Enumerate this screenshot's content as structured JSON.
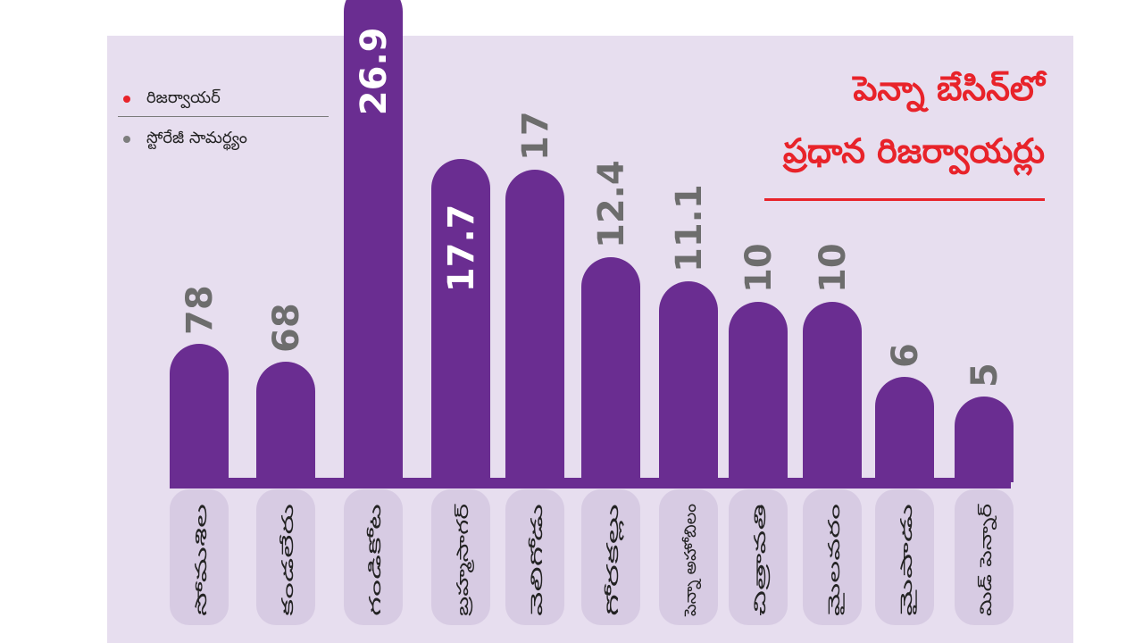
{
  "title": {
    "line1": "పెన్నా బేసిన్‌లో",
    "line2": "ప్రధాన రిజర్వాయర్లు"
  },
  "legend": {
    "items": [
      {
        "label": "రిజర్వాయర్",
        "color": "#e8232a"
      },
      {
        "label": "స్టోరేజీ సామర్థ్యం",
        "color": "#7d7d7d"
      }
    ]
  },
  "colors": {
    "bar": "#6a2d91",
    "bar_base": "#6a2d91",
    "label_pill": "#d7cbe3",
    "value_dark": "#6d6d6d",
    "value_on_bar": "#ffffff",
    "title": "#e8232a",
    "background_panel": "#e7deef"
  },
  "chart_data": {
    "type": "bar",
    "title": "పెన్నా బేసిన్‌లో ప్రధాన రిజర్వాయర్లు",
    "categories": [
      "సోమశిల",
      "కండలేరు",
      "గండికోట",
      "బ్రహ్మసాగర్",
      "వెలిగోడు",
      "గోరకల్లు",
      "పెన్నా అహోబిలం",
      "చిత్రావతి",
      "మైలవరం",
      "మైపాడు",
      "మిడ్ పెన్నార్"
    ],
    "values": [
      78,
      68,
      26.9,
      17.7,
      17,
      12.4,
      11.1,
      10,
      10,
      6,
      5
    ],
    "value_labels": [
      "78",
      "68",
      "26.9",
      "17.7",
      "17",
      "12.4",
      "11.1",
      "10",
      "10",
      "6",
      "5"
    ],
    "label_on_bar": [
      false,
      false,
      true,
      true,
      false,
      false,
      false,
      false,
      false,
      false,
      false
    ],
    "xlabel": "",
    "ylabel": "",
    "grid": false,
    "legend_position": "top-left"
  }
}
